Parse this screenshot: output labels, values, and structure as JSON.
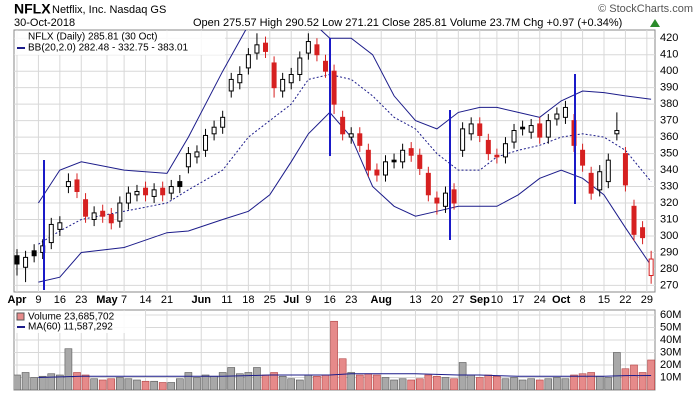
{
  "header": {
    "symbol": "NFLX",
    "name": "Netflix, Inc. Nasdaq GS",
    "date": "30-Oct-2018",
    "quote": "Open 275.57 High 290.52 Low 271.21 Close 285.81 Volume 23.7M Chg +0.97 (+0.34%)",
    "credit": "© StockCharts.com"
  },
  "chart_data": [
    {
      "type": "candlestick",
      "legend": [
        "NFLX (Daily) 285.81 (30 Oct)",
        "BB(20,2.0) 282.48 - 332.75 - 383.01"
      ],
      "up_color": "#000000",
      "down_color": "#d62020",
      "band_color": "#1c1c8a",
      "x": [
        0,
        2,
        4,
        6,
        8,
        10,
        12,
        14,
        16,
        18,
        20,
        22,
        24,
        26,
        28,
        30,
        32,
        34,
        36,
        38,
        40,
        42,
        44,
        46,
        48,
        50,
        52,
        54,
        56,
        58,
        60,
        62,
        64,
        66,
        68,
        70,
        72,
        74,
        76,
        78,
        80,
        82,
        84,
        86,
        88,
        90,
        92,
        94,
        96,
        98,
        100,
        102,
        104,
        106,
        108,
        110,
        112,
        114,
        116,
        118,
        120,
        122,
        124,
        126,
        128,
        130,
        132,
        134,
        136,
        138,
        140,
        142,
        144,
        146,
        148
      ],
      "open": [
        288,
        281,
        291,
        290,
        296,
        304,
        330,
        334,
        322,
        310,
        315,
        313,
        309,
        320,
        325,
        329,
        324,
        329,
        326,
        333,
        342,
        348,
        352,
        362,
        366,
        388,
        393,
        402,
        411,
        417,
        405,
        388,
        393,
        398,
        411,
        416,
        406,
        400,
        372,
        360,
        362,
        352,
        340,
        337,
        346,
        345,
        353,
        349,
        338,
        323,
        318,
        328,
        352,
        362,
        368,
        358,
        349,
        348,
        357,
        366,
        363,
        368,
        360,
        371,
        372,
        370,
        352,
        338,
        328,
        333,
        362,
        350,
        318,
        305,
        276
      ],
      "high": [
        292,
        291,
        295,
        298,
        311,
        312,
        338,
        338,
        326,
        318,
        319,
        317,
        324,
        330,
        331,
        333,
        332,
        333,
        334,
        337,
        354,
        355,
        365,
        370,
        376,
        399,
        403,
        414,
        423,
        421,
        409,
        399,
        402,
        412,
        423,
        420,
        410,
        404,
        376,
        366,
        366,
        356,
        344,
        349,
        350,
        356,
        357,
        353,
        342,
        327,
        330,
        332,
        369,
        372,
        372,
        362,
        353,
        360,
        368,
        370,
        371,
        372,
        374,
        378,
        382,
        374,
        356,
        342,
        343,
        350,
        375,
        354,
        322,
        309,
        291
      ],
      "low": [
        276,
        272,
        284,
        286,
        292,
        300,
        326,
        323,
        308,
        306,
        308,
        304,
        305,
        316,
        321,
        321,
        320,
        321,
        322,
        326,
        338,
        344,
        348,
        358,
        362,
        384,
        389,
        398,
        407,
        408,
        384,
        384,
        389,
        394,
        407,
        406,
        396,
        374,
        358,
        356,
        351,
        336,
        333,
        333,
        341,
        341,
        345,
        337,
        321,
        313,
        314,
        316,
        348,
        358,
        357,
        346,
        344,
        344,
        353,
        361,
        359,
        356,
        356,
        367,
        368,
        351,
        339,
        322,
        324,
        329,
        358,
        327,
        297,
        295,
        271
      ],
      "close": [
        283,
        287,
        288,
        294,
        307,
        308,
        333,
        327,
        312,
        314,
        312,
        308,
        320,
        326,
        327,
        325,
        328,
        325,
        330,
        330,
        350,
        351,
        361,
        366,
        372,
        395,
        398,
        410,
        416,
        412,
        390,
        395,
        398,
        408,
        418,
        410,
        400,
        380,
        362,
        362,
        355,
        340,
        337,
        345,
        345,
        352,
        349,
        341,
        325,
        320,
        326,
        320,
        365,
        368,
        361,
        350,
        348,
        356,
        364,
        365,
        367,
        360,
        370,
        374,
        378,
        355,
        343,
        326,
        339,
        346,
        364,
        331,
        301,
        299,
        286
      ],
      "bands": {
        "x": [
          5,
          10,
          15,
          25,
          35,
          40,
          48,
          54,
          59,
          64,
          68,
          73,
          78,
          83,
          88,
          93,
          98,
          103,
          108,
          112,
          117,
          122,
          127,
          132,
          137,
          142,
          148
        ],
        "upper": [
          320,
          340,
          345,
          340,
          338,
          360,
          400,
          428,
          432,
          433,
          432,
          420,
          420,
          410,
          385,
          370,
          365,
          375,
          378,
          378,
          375,
          372,
          382,
          388,
          387,
          385,
          383
        ],
        "middle": [
          295,
          303,
          310,
          315,
          320,
          328,
          340,
          360,
          370,
          380,
          395,
          398,
          395,
          385,
          372,
          365,
          350,
          340,
          340,
          348,
          352,
          355,
          360,
          362,
          360,
          352,
          333
        ],
        "lower": [
          272,
          275,
          290,
          293,
          302,
          303,
          310,
          315,
          325,
          345,
          362,
          375,
          360,
          330,
          318,
          312,
          315,
          318,
          318,
          318,
          325,
          335,
          340,
          335,
          325,
          305,
          282
        ]
      },
      "xlim": [
        -0.7,
        148.9
      ],
      "xticks": [
        {
          "value": 0,
          "label": "Apr"
        },
        {
          "value": 5,
          "label": "9"
        },
        {
          "value": 10,
          "label": "16"
        },
        {
          "value": 15,
          "label": "23"
        },
        {
          "value": 21,
          "label": "May"
        },
        {
          "value": 25,
          "label": "7"
        },
        {
          "value": 30,
          "label": "14"
        },
        {
          "value": 35,
          "label": "21"
        },
        {
          "value": 43,
          "label": "Jun"
        },
        {
          "value": 49,
          "label": "11"
        },
        {
          "value": 54,
          "label": "18"
        },
        {
          "value": 59,
          "label": "25"
        },
        {
          "value": 64,
          "label": "Jul"
        },
        {
          "value": 68,
          "label": "9"
        },
        {
          "value": 73,
          "label": "16"
        },
        {
          "value": 78,
          "label": "23"
        },
        {
          "value": 85,
          "label": "Aug"
        },
        {
          "value": 93,
          "label": "13"
        },
        {
          "value": 98,
          "label": "20"
        },
        {
          "value": 103,
          "label": "27"
        },
        {
          "value": 108,
          "label": "Sep"
        },
        {
          "value": 112,
          "label": "10"
        },
        {
          "value": 117,
          "label": "17"
        },
        {
          "value": 122,
          "label": "24"
        },
        {
          "value": 127,
          "label": "Oct"
        },
        {
          "value": 132,
          "label": "8"
        },
        {
          "value": 137,
          "label": "15"
        },
        {
          "value": 142,
          "label": "22"
        },
        {
          "value": 147,
          "label": "29"
        }
      ],
      "ylim": [
        266,
        425
      ],
      "yticks": [
        270,
        280,
        290,
        300,
        310,
        320,
        330,
        340,
        350,
        360,
        370,
        380,
        390,
        400,
        410,
        420
      ],
      "grid": true
    },
    {
      "type": "bar",
      "legend": [
        "Volume 23,685,702",
        "MA(60) 11,587,292"
      ],
      "up_color": "#a8a8a8",
      "down_color": "#e68a8a",
      "ma_color": "#1c1c8a",
      "x": [
        0,
        2,
        4,
        6,
        8,
        10,
        12,
        14,
        16,
        18,
        20,
        22,
        24,
        26,
        28,
        30,
        32,
        34,
        36,
        38,
        40,
        42,
        44,
        46,
        48,
        50,
        52,
        54,
        56,
        58,
        60,
        62,
        64,
        66,
        68,
        70,
        72,
        74,
        76,
        78,
        80,
        82,
        84,
        86,
        88,
        90,
        92,
        94,
        96,
        98,
        100,
        102,
        104,
        106,
        108,
        110,
        112,
        114,
        116,
        118,
        120,
        122,
        124,
        126,
        128,
        130,
        132,
        134,
        136,
        138,
        140,
        142,
        144,
        146,
        148
      ],
      "values": [
        12,
        14,
        10,
        11,
        13,
        12,
        33,
        14,
        12,
        9,
        8,
        9,
        10,
        9,
        8,
        7,
        7,
        6,
        6,
        9,
        14,
        10,
        12,
        11,
        14,
        18,
        13,
        14,
        18,
        12,
        14,
        11,
        9,
        8,
        12,
        11,
        12,
        55,
        25,
        14,
        12,
        13,
        12,
        10,
        8,
        9,
        8,
        9,
        12,
        11,
        10,
        9,
        22,
        12,
        10,
        12,
        11,
        9,
        10,
        8,
        9,
        8,
        9,
        10,
        9,
        12,
        13,
        14,
        11,
        10,
        30,
        17,
        20,
        14,
        24
      ],
      "ma": {
        "x": [
          5,
          10,
          15,
          25,
          35,
          40,
          48,
          54,
          59,
          64,
          68,
          73,
          78,
          83,
          88,
          93,
          98,
          103,
          108,
          112,
          117,
          122,
          127,
          132,
          137,
          142,
          148
        ],
        "values": [
          10,
          10.5,
          11,
          11,
          11,
          11,
          11,
          11.5,
          12,
          12,
          12,
          12,
          13,
          13,
          13,
          13,
          12.5,
          12,
          12,
          11.5,
          11,
          11,
          11,
          11,
          11,
          11.5,
          11.6
        ]
      },
      "ylim": [
        0,
        64
      ],
      "yticks": [
        {
          "value": 10,
          "label": "10M"
        },
        {
          "value": 20,
          "label": "20M"
        },
        {
          "value": 30,
          "label": "30M"
        },
        {
          "value": 40,
          "label": "40M"
        },
        {
          "value": 50,
          "label": "50M"
        },
        {
          "value": 60,
          "label": "60M"
        }
      ],
      "grid": true
    }
  ]
}
